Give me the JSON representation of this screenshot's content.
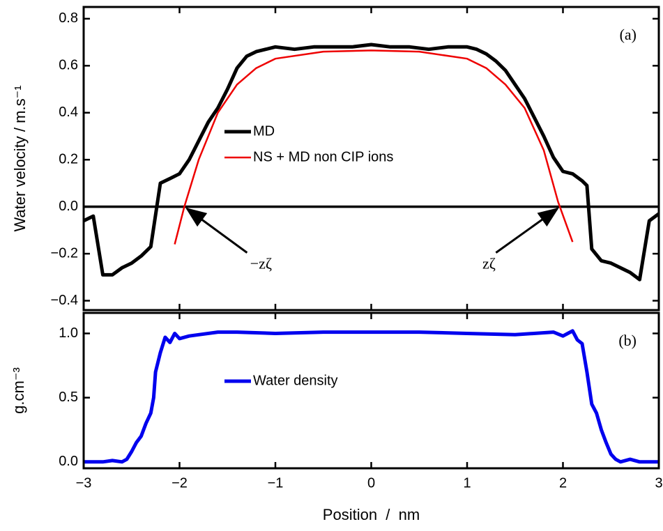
{
  "chart_data": [
    {
      "type": "line",
      "y_label": "Water velocity / m.s⁻¹",
      "xlim": [
        -3,
        3
      ],
      "ylim": [
        -0.44,
        0.85
      ],
      "yticks": [
        {
          "value": 0.8,
          "label": "0.8"
        },
        {
          "value": 0.6,
          "label": "0.6"
        },
        {
          "value": 0.4,
          "label": "0.4"
        },
        {
          "value": 0.2,
          "label": "0.2"
        },
        {
          "value": 0,
          "label": "0.0"
        },
        {
          "value": -0.2,
          "label": "−0.2"
        },
        {
          "value": -0.4,
          "label": "−0.4"
        }
      ],
      "reference_line": 0,
      "series": [
        {
          "name": "MD",
          "color": "#000000",
          "x": [
            -3.0,
            -2.9,
            -2.8,
            -2.7,
            -2.6,
            -2.5,
            -2.4,
            -2.3,
            -2.2,
            -2.1,
            -2.0,
            -1.9,
            -1.8,
            -1.7,
            -1.6,
            -1.5,
            -1.4,
            -1.3,
            -1.2,
            -1.1,
            -1.0,
            -0.8,
            -0.6,
            -0.4,
            -0.2,
            0.0,
            0.2,
            0.4,
            0.6,
            0.8,
            1.0,
            1.1,
            1.2,
            1.3,
            1.4,
            1.5,
            1.6,
            1.7,
            1.8,
            1.9,
            2.0,
            2.1,
            2.2,
            2.25,
            2.3,
            2.4,
            2.5,
            2.6,
            2.7,
            2.8,
            2.9,
            3.0
          ],
          "values": [
            -0.06,
            -0.04,
            -0.29,
            -0.29,
            -0.26,
            -0.24,
            -0.21,
            -0.17,
            0.1,
            0.12,
            0.14,
            0.2,
            0.28,
            0.36,
            0.42,
            0.5,
            0.59,
            0.64,
            0.66,
            0.67,
            0.68,
            0.67,
            0.68,
            0.68,
            0.68,
            0.69,
            0.68,
            0.68,
            0.67,
            0.68,
            0.68,
            0.67,
            0.65,
            0.62,
            0.58,
            0.52,
            0.46,
            0.38,
            0.3,
            0.21,
            0.15,
            0.14,
            0.11,
            0.09,
            -0.18,
            -0.23,
            -0.24,
            -0.26,
            -0.28,
            -0.31,
            -0.06,
            -0.03
          ]
        },
        {
          "name": "NS + MD non CIP ions",
          "color": "#ee0000",
          "x": [
            -2.05,
            -1.95,
            -1.8,
            -1.6,
            -1.4,
            -1.2,
            -1.0,
            -0.5,
            0.0,
            0.5,
            1.0,
            1.2,
            1.4,
            1.6,
            1.8,
            1.95,
            2.1
          ],
          "values": [
            -0.16,
            0.0,
            0.2,
            0.4,
            0.52,
            0.59,
            0.63,
            0.66,
            0.665,
            0.66,
            0.63,
            0.59,
            0.52,
            0.42,
            0.24,
            0.02,
            -0.15
          ]
        }
      ],
      "annotations": [
        {
          "text": "(a)"
        },
        {
          "text": "−zζ",
          "x": -1.95,
          "y": 0
        },
        {
          "text": "zζ",
          "x": 1.97,
          "y": 0
        }
      ]
    },
    {
      "type": "line",
      "x_label": "Position  /  nm",
      "y_label": "g.cm⁻³",
      "xlim": [
        -3,
        3
      ],
      "ylim": [
        -0.05,
        1.16
      ],
      "xticks": [
        {
          "value": -3,
          "label": "−3"
        },
        {
          "value": -2,
          "label": "−2"
        },
        {
          "value": -1,
          "label": "−1"
        },
        0,
        1,
        2,
        3
      ],
      "yticks": [
        {
          "value": 1,
          "label": "1.0"
        },
        {
          "value": 0.5,
          "label": "0.5"
        },
        {
          "value": 0,
          "label": "0.0"
        }
      ],
      "series": [
        {
          "name": "Water density",
          "color": "#0000ee",
          "x": [
            -3.0,
            -2.8,
            -2.7,
            -2.6,
            -2.55,
            -2.5,
            -2.45,
            -2.4,
            -2.35,
            -2.3,
            -2.27,
            -2.25,
            -2.2,
            -2.15,
            -2.1,
            -2.05,
            -2.0,
            -1.9,
            -1.8,
            -1.6,
            -1.4,
            -1.0,
            -0.5,
            0.0,
            0.5,
            1.0,
            1.5,
            1.9,
            2.0,
            2.05,
            2.1,
            2.15,
            2.2,
            2.25,
            2.3,
            2.35,
            2.4,
            2.45,
            2.5,
            2.55,
            2.6,
            2.7,
            2.8,
            3.0
          ],
          "values": [
            0.0,
            0.0,
            0.01,
            0.0,
            0.02,
            0.08,
            0.15,
            0.2,
            0.3,
            0.38,
            0.5,
            0.7,
            0.85,
            0.97,
            0.93,
            1.0,
            0.96,
            0.98,
            0.99,
            1.01,
            1.01,
            1.0,
            1.01,
            1.01,
            1.01,
            1.0,
            0.99,
            1.01,
            0.98,
            1.0,
            1.02,
            0.95,
            0.92,
            0.7,
            0.45,
            0.38,
            0.25,
            0.15,
            0.06,
            0.02,
            0.0,
            0.02,
            0.0,
            0.0
          ]
        }
      ],
      "annotations": [
        {
          "text": "(b)"
        }
      ]
    }
  ]
}
